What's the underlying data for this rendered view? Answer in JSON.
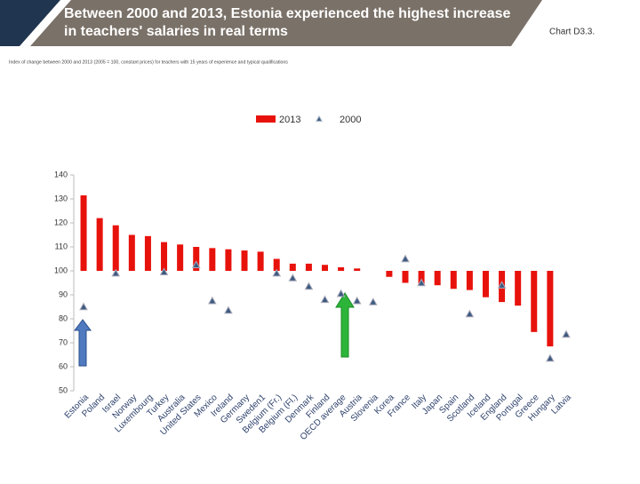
{
  "chart_data": {
    "type": "bar",
    "title": "Between 2000 and 2013, Estonia experienced the highest increase in teachers' salaries in real terms",
    "chart_label": "Chart D3.3.",
    "subtitle": "Index of change between 2000 and 2013 (2005 = 100, constant prices) for teachers with 15 years of experience and typical qualifications",
    "categories": [
      "Estonia",
      "Poland",
      "Israel",
      "Norway",
      "Luxembourg",
      "Turkey",
      "Australia",
      "United States",
      "Mexico",
      "Ireland",
      "Germany",
      "Sweden1",
      "Belgium (Fr.)",
      "Belgium (Fl.)",
      "Denmark",
      "Finland",
      "OECD average",
      "Austria",
      "Slovenia",
      "Korea",
      "France",
      "Italy",
      "Japan",
      "Spain",
      "Scotland",
      "Iceland",
      "England",
      "Portugal",
      "Greece",
      "Hungary",
      "Latvia"
    ],
    "series": [
      {
        "name": "2013",
        "color": "#e8120c",
        "mark": "bar",
        "values": [
          131.5,
          122,
          119,
          115,
          114.5,
          112,
          111,
          110,
          109.5,
          109,
          108.5,
          108,
          105,
          103,
          103,
          102.5,
          101.5,
          101,
          null,
          97.5,
          95,
          94,
          94,
          92.5,
          92,
          89,
          87,
          85.5,
          74.5,
          68.5,
          null
        ]
      },
      {
        "name": "2000",
        "color": "#3d5a80",
        "mark": "triangle",
        "values": [
          85,
          null,
          99,
          null,
          null,
          99.5,
          null,
          102.5,
          87.5,
          83.5,
          null,
          null,
          99,
          97,
          93.5,
          88,
          90.5,
          87.5,
          87,
          null,
          105,
          95,
          null,
          null,
          82,
          null,
          94,
          null,
          null,
          63.5,
          73.5
        ]
      }
    ],
    "base": 100,
    "ylim": [
      50,
      140
    ],
    "yticks": [
      50,
      60,
      70,
      80,
      90,
      100,
      110,
      120,
      130,
      140
    ]
  }
}
